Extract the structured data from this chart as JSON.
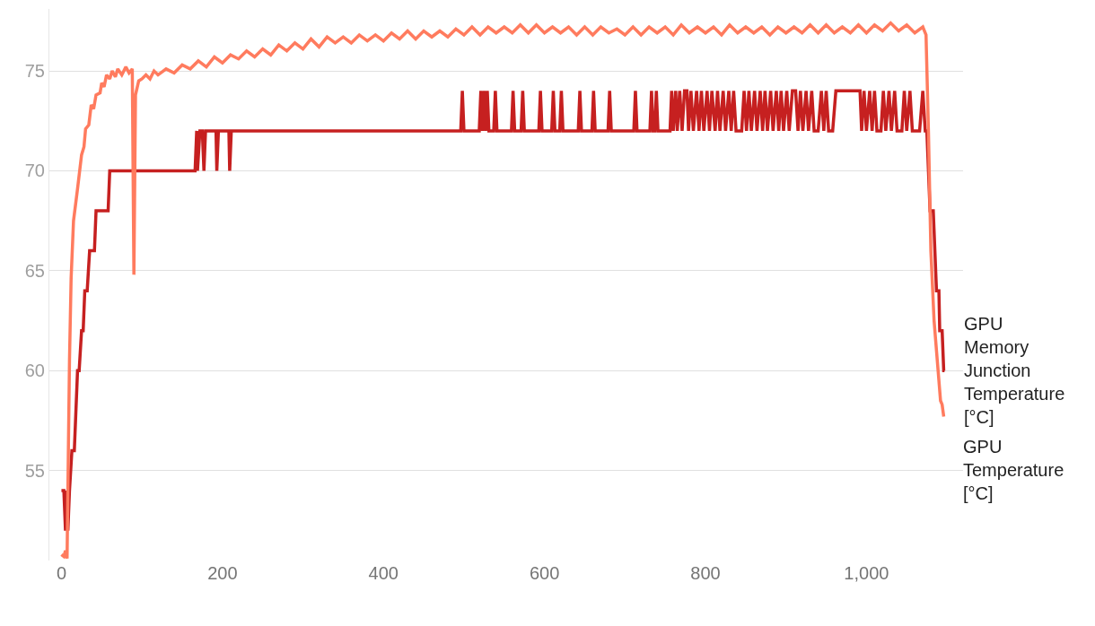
{
  "chart_data": {
    "type": "line",
    "xlim": [
      -15,
      1120
    ],
    "xticks": [
      0,
      200,
      400,
      600,
      800,
      {
        "value": 1000,
        "label": "1,000"
      }
    ],
    "ylim": [
      50.5,
      78.1
    ],
    "yticks": [
      55,
      60,
      65,
      70,
      75
    ],
    "grid": "y",
    "legend": false,
    "marker": "none",
    "line_style": "solid",
    "series": [
      {
        "name": "GPU Memory Junction Temperature [°C]",
        "color": "#c62020",
        "x": [
          0,
          3,
          5,
          7,
          8,
          10,
          13,
          16,
          20,
          22,
          25,
          27,
          29,
          32,
          35,
          41,
          43,
          58,
          60,
          166,
          168,
          169,
          172,
          175,
          177,
          179,
          192,
          193,
          195,
          208,
          209,
          211,
          496,
          498,
          500,
          519,
          521,
          523,
          525,
          527,
          529,
          531,
          537,
          539,
          541,
          559,
          561,
          563,
          571,
          573,
          575,
          593,
          595,
          597,
          609,
          611,
          613,
          619,
          621,
          623,
          642,
          644,
          646,
          659,
          661,
          663,
          679,
          681,
          683,
          711,
          713,
          715,
          731,
          733,
          735,
          737,
          739,
          741,
          756,
          758,
          760,
          763,
          765,
          768,
          771,
          774,
          777,
          779,
          782,
          785,
          789,
          792,
          795,
          798,
          802,
          805,
          808,
          812,
          815,
          818,
          822,
          825,
          829,
          832,
          835,
          838,
          845,
          848,
          851,
          854,
          857,
          861,
          864,
          868,
          871,
          874,
          877,
          881,
          884,
          888,
          891,
          894,
          897,
          901,
          904,
          908,
          912,
          915,
          918,
          921,
          925,
          928,
          932,
          935,
          940,
          944,
          947,
          950,
          953,
          958,
          962,
          992,
          994,
          997,
          1000,
          1004,
          1007,
          1010,
          1013,
          1018,
          1021,
          1024,
          1028,
          1031,
          1035,
          1038,
          1044,
          1047,
          1050,
          1054,
          1057,
          1066,
          1070,
          1073,
          1075,
          1079,
          1083,
          1087,
          1090,
          1091,
          1094,
          1096,
          1097
        ],
        "values": [
          54,
          54,
          52,
          54,
          52,
          54,
          56,
          56,
          60,
          60,
          62,
          62,
          64,
          64,
          66,
          66,
          68,
          68,
          70,
          70,
          72,
          70,
          72,
          72,
          70,
          72,
          72,
          70,
          72,
          72,
          70,
          72,
          72,
          74,
          72,
          72,
          74,
          72,
          74,
          72,
          74,
          72,
          72,
          74,
          72,
          72,
          74,
          72,
          72,
          74,
          72,
          72,
          74,
          72,
          72,
          74,
          72,
          72,
          74,
          72,
          72,
          74,
          72,
          72,
          74,
          72,
          72,
          74,
          72,
          72,
          74,
          72,
          72,
          74,
          72,
          72,
          74,
          72,
          72,
          74,
          72,
          74,
          72,
          74,
          72,
          74,
          74,
          72,
          74,
          72,
          74,
          72,
          74,
          72,
          74,
          72,
          74,
          72,
          74,
          72,
          74,
          72,
          74,
          72,
          74,
          72,
          72,
          74,
          72,
          74,
          72,
          74,
          72,
          74,
          72,
          74,
          72,
          74,
          72,
          74,
          72,
          74,
          72,
          74,
          72,
          74,
          74,
          72,
          74,
          72,
          74,
          72,
          74,
          72,
          72,
          74,
          72,
          74,
          72,
          72,
          74,
          74,
          72,
          74,
          72,
          74,
          72,
          74,
          72,
          72,
          74,
          72,
          74,
          72,
          74,
          72,
          72,
          74,
          72,
          74,
          72,
          72,
          74,
          72,
          72,
          68,
          68,
          64,
          64,
          62,
          62,
          60,
          60
        ]
      },
      {
        "name": "GPU Temperature [°C]",
        "color": "#ff7b5e",
        "x": [
          0,
          3,
          5,
          7,
          8,
          10,
          12,
          15,
          20,
          25,
          28,
          30,
          34,
          37,
          40,
          43,
          48,
          50,
          53,
          56,
          60,
          63,
          67,
          70,
          75,
          80,
          84,
          88,
          90,
          92,
          96,
          100,
          105,
          110,
          115,
          120,
          130,
          140,
          150,
          160,
          170,
          180,
          190,
          200,
          210,
          220,
          230,
          240,
          250,
          260,
          270,
          280,
          290,
          300,
          310,
          320,
          330,
          340,
          350,
          360,
          370,
          380,
          390,
          400,
          410,
          420,
          430,
          440,
          450,
          460,
          470,
          480,
          490,
          500,
          510,
          520,
          530,
          540,
          550,
          560,
          570,
          580,
          590,
          600,
          610,
          620,
          630,
          640,
          650,
          660,
          670,
          680,
          690,
          700,
          710,
          720,
          730,
          740,
          750,
          760,
          770,
          780,
          790,
          800,
          810,
          820,
          830,
          840,
          850,
          860,
          870,
          880,
          890,
          900,
          910,
          920,
          930,
          940,
          950,
          960,
          970,
          980,
          990,
          1000,
          1010,
          1020,
          1030,
          1040,
          1050,
          1060,
          1070,
          1074,
          1077,
          1080,
          1084,
          1089,
          1092,
          1094,
          1096
        ],
        "values": [
          50.8,
          50.7,
          51.0,
          50.6,
          54,
          60.5,
          64.6,
          67.5,
          69.1,
          70.8,
          71.2,
          72.1,
          72.3,
          73.3,
          73.1,
          73.8,
          73.9,
          74.4,
          74.2,
          74.8,
          74.6,
          75.0,
          74.7,
          75.1,
          74.8,
          75.2,
          74.9,
          75.1,
          64.8,
          73.8,
          74.5,
          74.6,
          74.8,
          74.6,
          75.0,
          74.8,
          75.1,
          74.9,
          75.3,
          75.1,
          75.5,
          75.2,
          75.7,
          75.4,
          75.8,
          75.6,
          76.0,
          75.7,
          76.1,
          75.8,
          76.3,
          76.0,
          76.4,
          76.1,
          76.6,
          76.2,
          76.7,
          76.4,
          76.7,
          76.4,
          76.8,
          76.5,
          76.8,
          76.5,
          76.9,
          76.6,
          77.0,
          76.6,
          77.0,
          76.7,
          77.0,
          76.7,
          77.1,
          76.8,
          77.2,
          76.8,
          77.2,
          76.9,
          77.2,
          76.9,
          77.3,
          76.9,
          77.3,
          76.9,
          77.2,
          76.9,
          77.2,
          76.8,
          77.2,
          76.8,
          77.2,
          76.9,
          77.1,
          76.8,
          77.2,
          76.8,
          77.2,
          76.9,
          77.2,
          76.8,
          77.3,
          76.9,
          77.2,
          76.9,
          77.2,
          76.8,
          77.3,
          76.9,
          77.2,
          76.9,
          77.2,
          76.8,
          77.2,
          76.9,
          77.2,
          76.9,
          77.3,
          76.9,
          77.3,
          76.9,
          77.2,
          76.9,
          77.3,
          76.9,
          77.3,
          77.0,
          77.4,
          77.0,
          77.3,
          76.9,
          77.2,
          76.8,
          72,
          66,
          62.5,
          60,
          58.5,
          58.3,
          57.7
        ]
      }
    ]
  }
}
